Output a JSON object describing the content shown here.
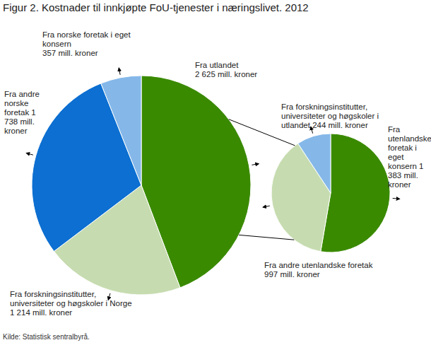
{
  "title": "Figur 2. Kostnader til innkjøpte FoU-tjenester i næringslivet. 2012",
  "source": "Kilde: Statistisk sentralbyrå.",
  "chart_data": [
    {
      "type": "pie",
      "categories": [
        "Fra utlandet",
        "Fra forskningsinstitutter, universiteter og høgskoler i Norge",
        "Fra andre norske foretak",
        "Fra norske foretak i eget konsern"
      ],
      "values": [
        2625,
        1214,
        1738,
        357
      ],
      "value_labels": [
        "2 625 mill. kroner",
        "1 214 mill. kroner",
        "1 738 mill. kroner",
        "357 mill. kroner"
      ],
      "colors": [
        "#3a8a00",
        "#c6dcb0",
        "#0c6fd1",
        "#85b8e9"
      ],
      "data_labels": true
    },
    {
      "type": "pie",
      "categories": [
        "Fra utenlandske foretak i eget konsern",
        "Fra andre utenlandske foretak",
        "Fra forskningsinstitutter, universiteter og høgskoler i utlandet"
      ],
      "values": [
        1383,
        997,
        244
      ],
      "value_labels": [
        "1 383 mill. kroner",
        "997 mill. kroner",
        "244 mill. kroner"
      ],
      "colors": [
        "#3a8a00",
        "#c6dcb0",
        "#85b8e9"
      ],
      "data_labels": true
    }
  ]
}
